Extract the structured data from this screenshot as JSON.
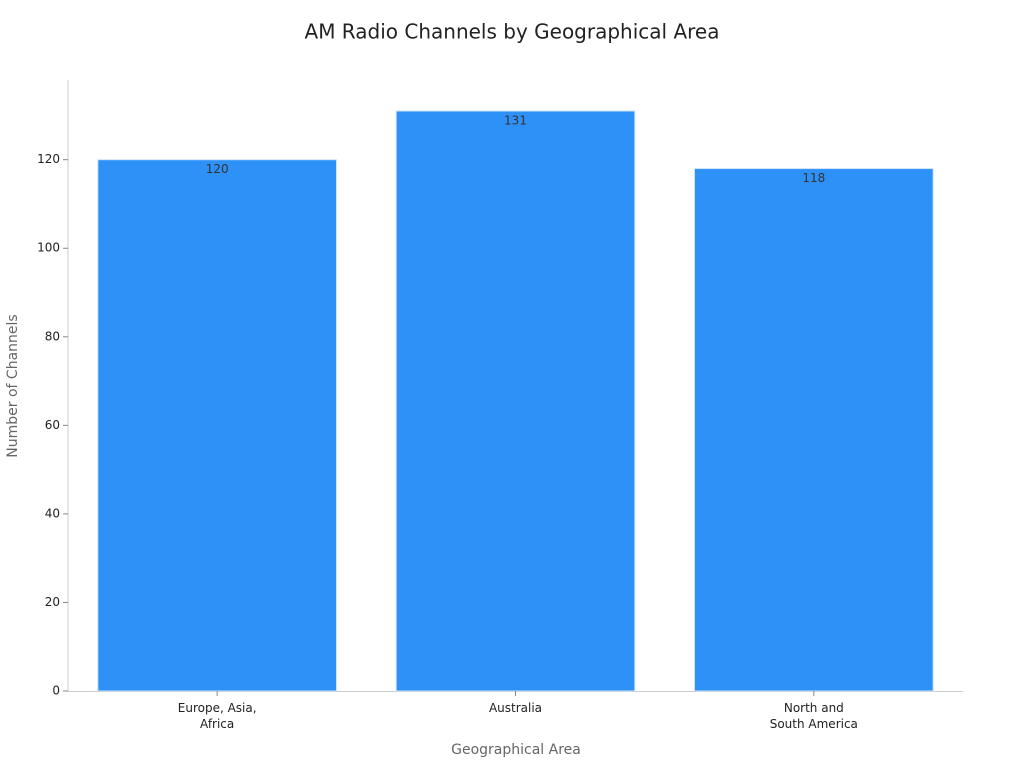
{
  "chart_data": {
    "type": "bar",
    "title": "AM Radio Channels by Geographical Area",
    "x_label": "Geographical Area",
    "y_label": "Number of Channels",
    "categories": [
      "Europe, Asia,\nAfrica",
      "Australia",
      "North and\nSouth America"
    ],
    "values": [
      120,
      131,
      118
    ],
    "color": "#2e91f8",
    "ylim": [
      0,
      138
    ],
    "yticks": [
      0,
      20,
      40,
      60,
      80,
      100,
      120
    ],
    "grid": false
  }
}
